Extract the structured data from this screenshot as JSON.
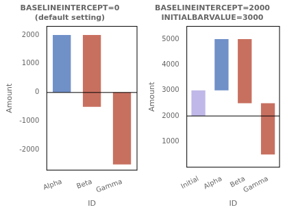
{
  "chart_data": [
    {
      "type": "bar",
      "title": [
        "BASELINEINTERCEPT=0",
        "(default setting)"
      ],
      "x_label": "ID",
      "y_label": "Amount",
      "categories": [
        "Alpha",
        "Beta",
        "Gamma"
      ],
      "values": [
        [
          0,
          2000
        ],
        [
          -500,
          2000
        ],
        [
          -2500,
          0
        ]
      ],
      "colors": [
        "#7090C8",
        "#C87060",
        "#C87060"
      ],
      "baseline": 0,
      "ylim": [
        -2700,
        2300
      ],
      "yticks": [
        -2000,
        -1000,
        0,
        1000,
        2000
      ],
      "grid": false
    },
    {
      "type": "bar",
      "title": [
        "BASELINEINTERCEPT=2000",
        "INITIALBARVALUE=3000"
      ],
      "x_label": "ID",
      "y_label": "Amount",
      "categories": [
        "Initial",
        "Alpha",
        "Beta",
        "Gamma"
      ],
      "values": [
        [
          2000,
          3000
        ],
        [
          3000,
          5000
        ],
        [
          2500,
          5000
        ],
        [
          500,
          2500
        ]
      ],
      "colors": [
        "#C0B8E8",
        "#7090C8",
        "#C87060",
        "#C87060"
      ],
      "baseline": 2000,
      "ylim": [
        0,
        5500
      ],
      "yticks": [
        1000,
        2000,
        3000,
        4000,
        5000
      ],
      "grid": false
    }
  ]
}
